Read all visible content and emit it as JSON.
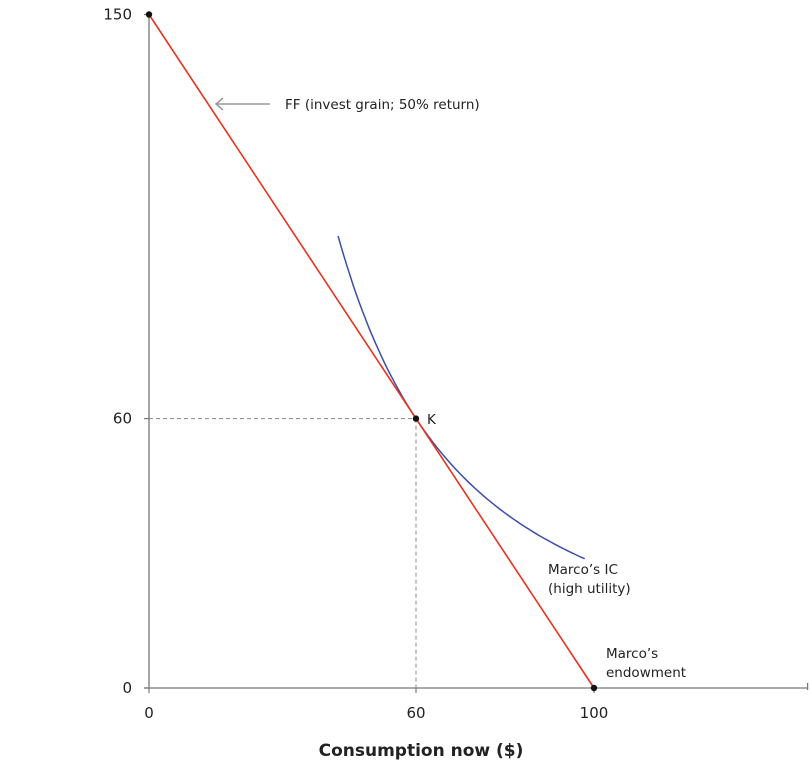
{
  "chart_data": {
    "type": "line",
    "title": "",
    "xlabel": "Consumption now ($)",
    "ylabel": "",
    "xlim": [
      0,
      148
    ],
    "ylim": [
      0,
      150
    ],
    "x_ticks": [
      0,
      60,
      100
    ],
    "y_ticks": [
      0,
      60,
      150
    ],
    "grid": false,
    "colors": {
      "ff": "#e8321e",
      "ic": "#3a4dab",
      "axis": "#777777",
      "arrow": "#9a9a9a"
    },
    "series": [
      {
        "name": "FF (invest grain; 50% return)",
        "kind": "line",
        "points": [
          [
            0,
            150
          ],
          [
            100,
            0
          ]
        ]
      },
      {
        "name": "Marco's IC (high utility)",
        "kind": "curve",
        "x_range": [
          42.5,
          97.9
        ],
        "through": [
          60,
          60
        ],
        "slope_at_tangency": -1.5
      }
    ],
    "points": [
      {
        "label": "K",
        "x": 60,
        "y": 60
      },
      {
        "label": "",
        "x": 0,
        "y": 150
      },
      {
        "label": "",
        "x": 100,
        "y": 0
      }
    ],
    "annotations": {
      "ff": "FF (invest grain; 50% return)",
      "ic_line1": "Marco’s IC",
      "ic_line2": "(high utility)",
      "end_line1": "Marco’s",
      "end_line2": "endowment",
      "k": "K"
    }
  }
}
